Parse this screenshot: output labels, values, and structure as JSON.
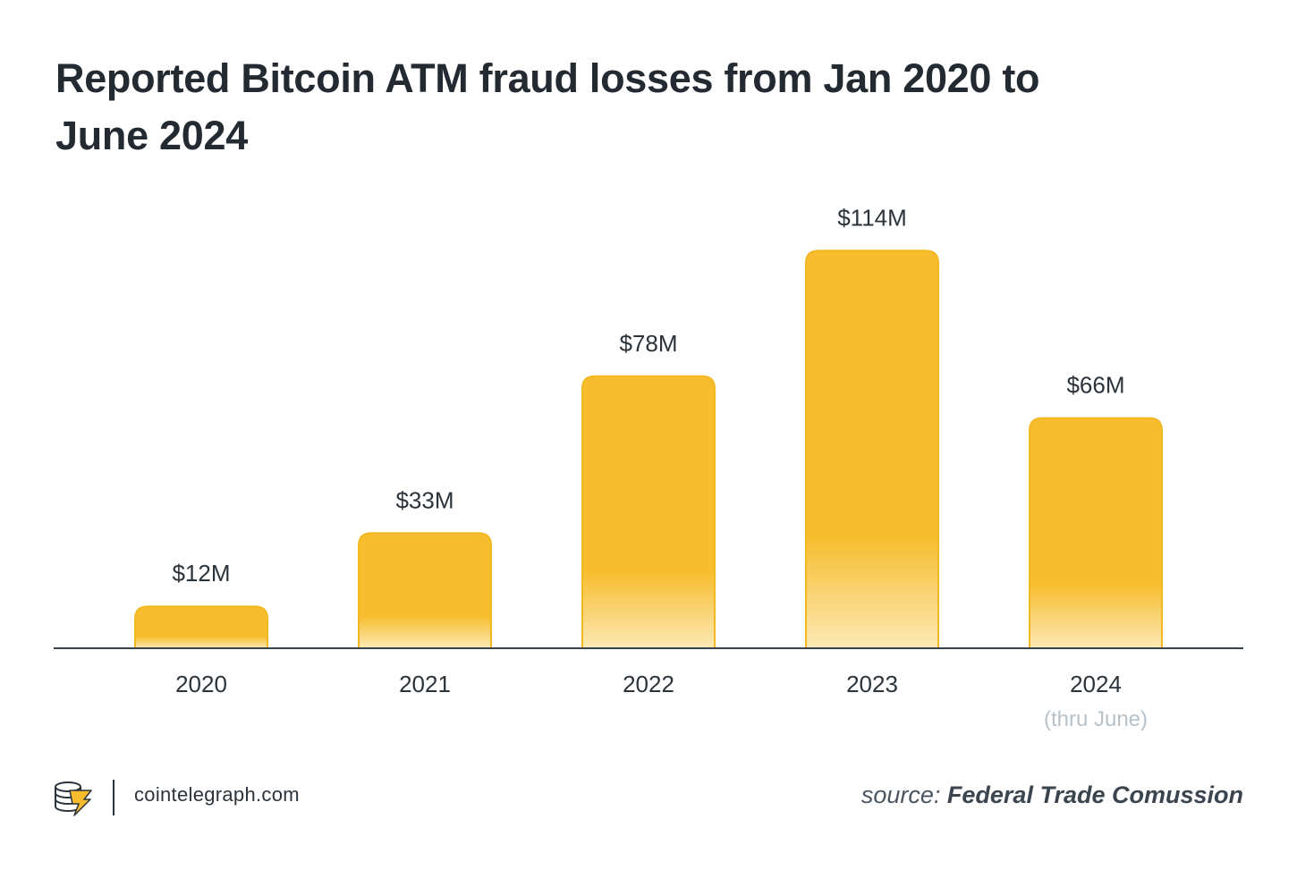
{
  "chart_data": {
    "type": "bar",
    "title": "Reported Bitcoin ATM fraud losses from Jan 2020 to June 2024",
    "categories": [
      "2020",
      "2021",
      "2022",
      "2023",
      "2024"
    ],
    "category_notes": [
      "",
      "",
      "",
      "",
      "(thru June)"
    ],
    "values": [
      12,
      33,
      78,
      114,
      66
    ],
    "value_labels": [
      "$12M",
      "$33M",
      "$78M",
      "$114M",
      "$66M"
    ],
    "ylim": [
      0,
      120
    ],
    "xlabel": "",
    "ylabel": "",
    "grid": false,
    "bar_color_top": "#f7bd2e",
    "bar_color_bottom": "#fce9b5",
    "bar_stroke": "#f1b81f"
  },
  "footer": {
    "site": "cointelegraph.com",
    "source_prefix": "source:",
    "source_name": "Federal Trade Comussion",
    "logo_icon": "cointelegraph-logo-icon"
  }
}
